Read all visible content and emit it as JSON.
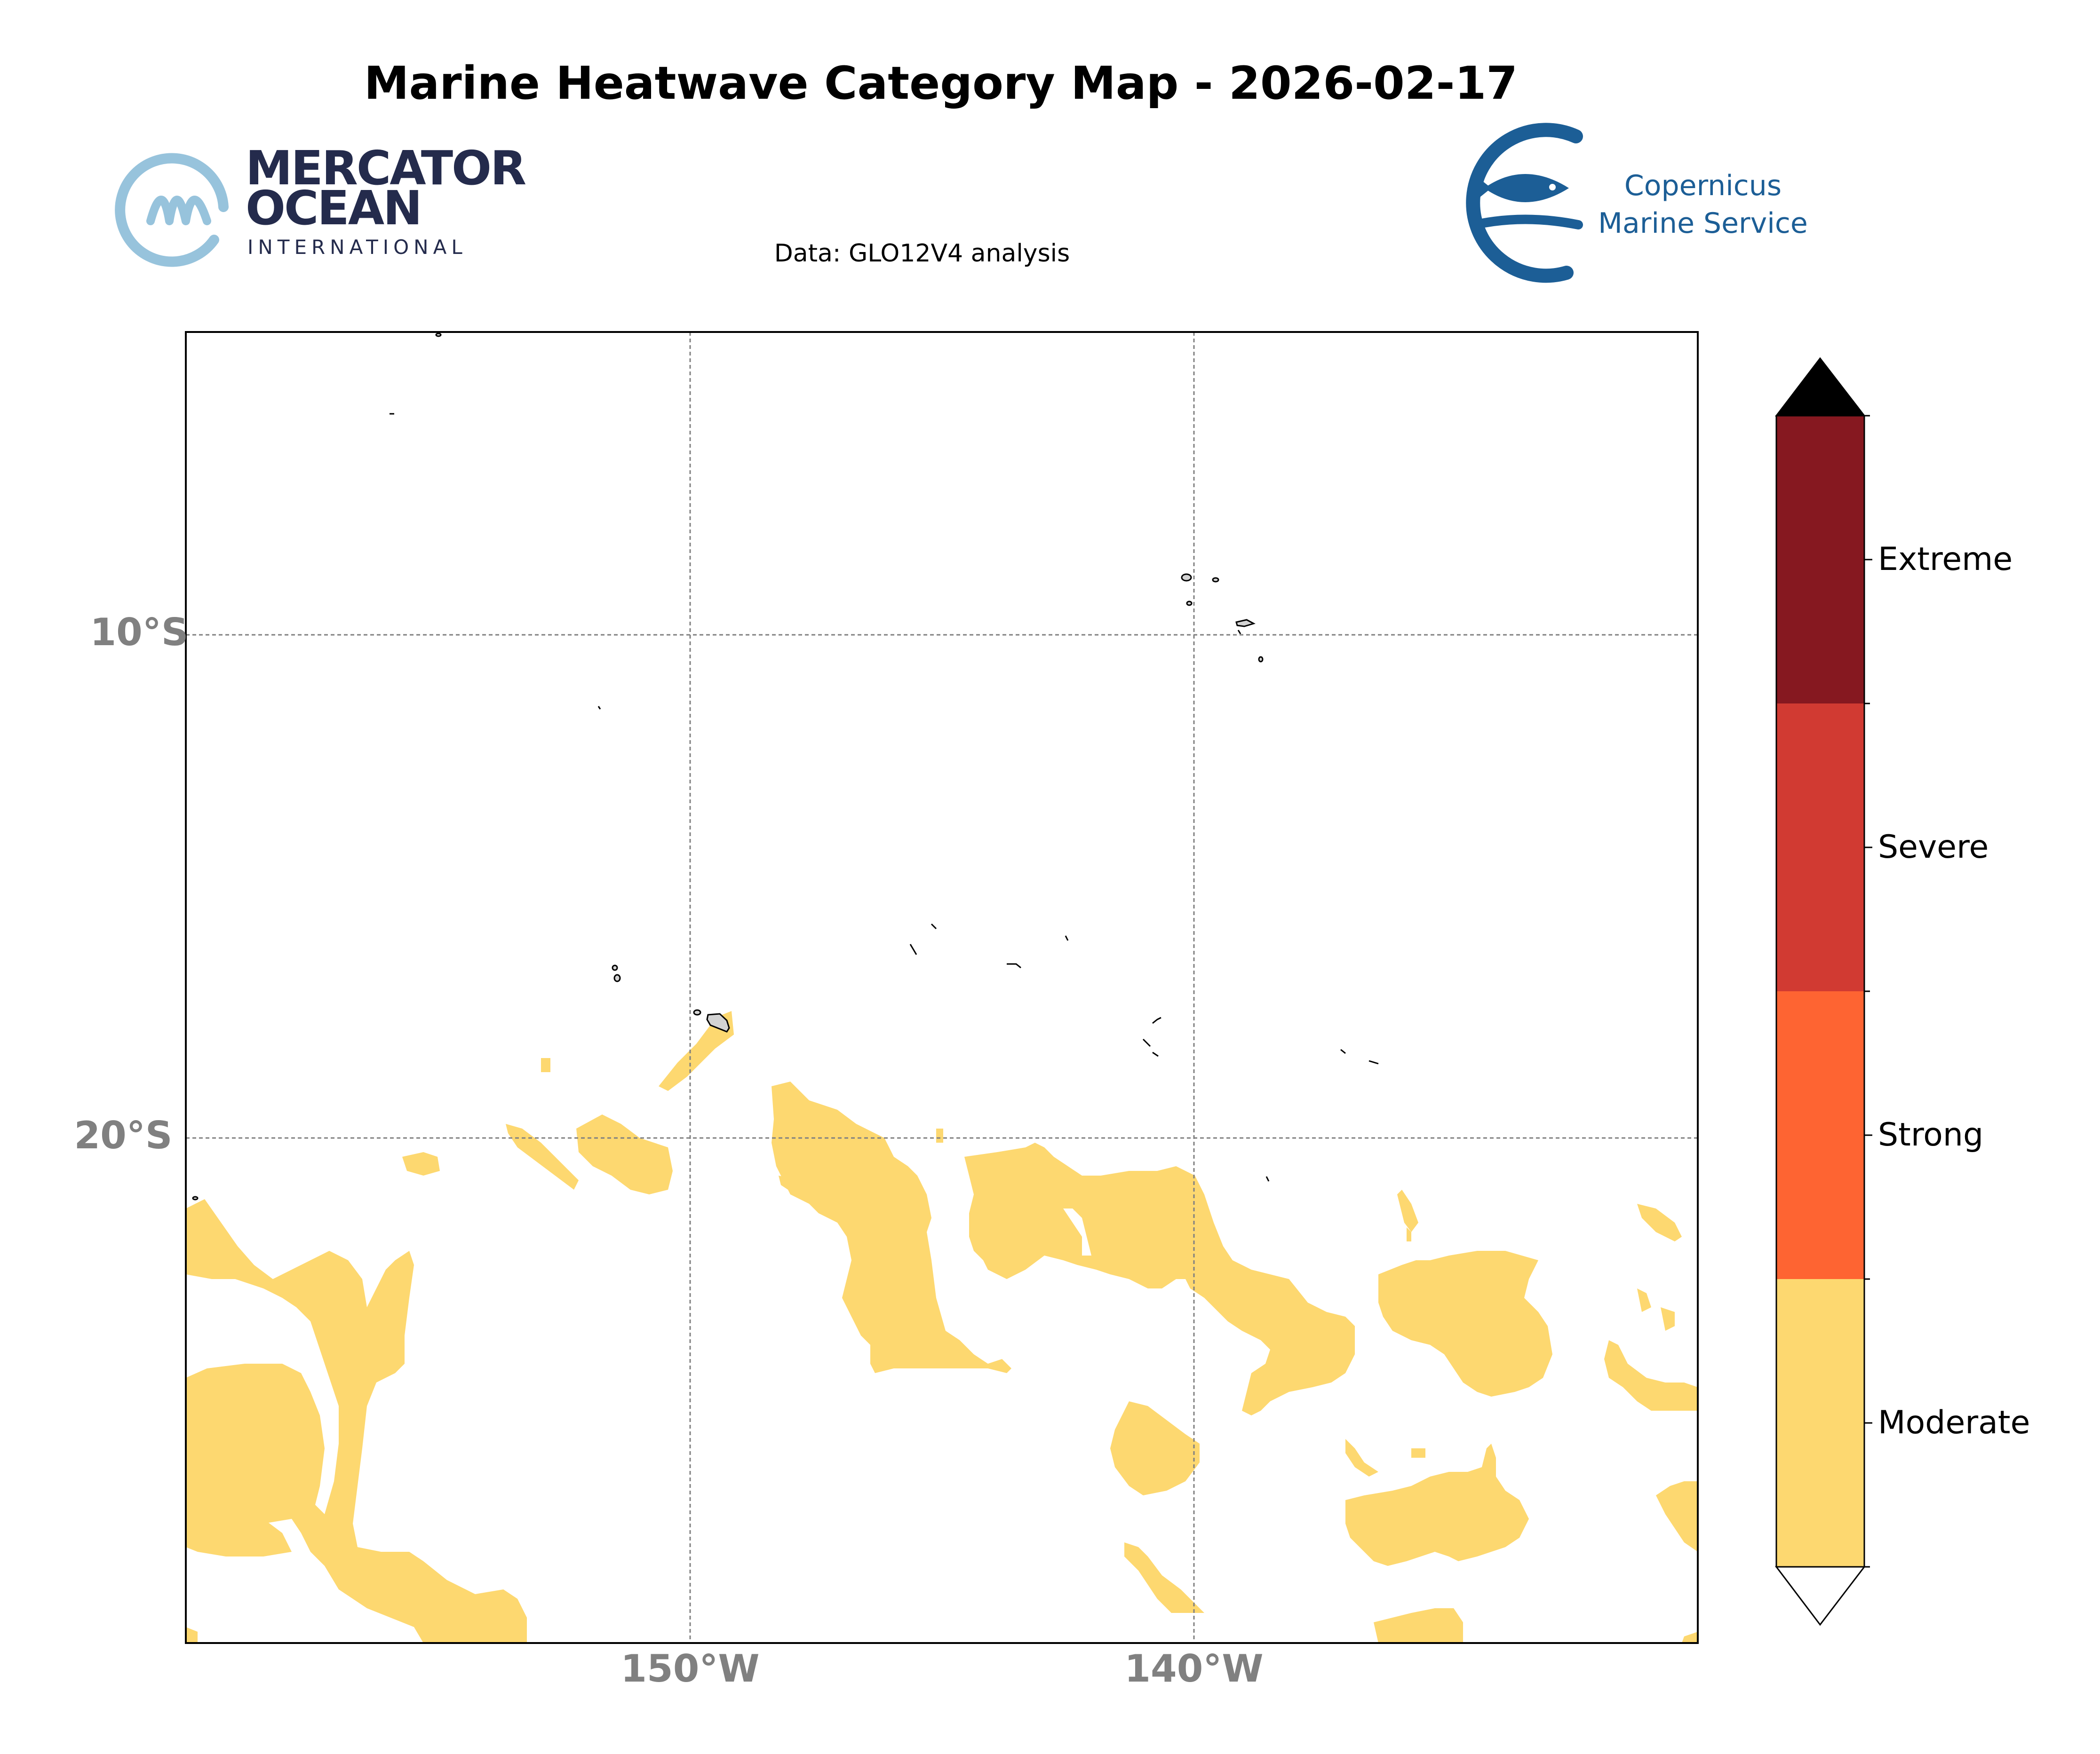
{
  "title": "Marine Heatwave Category Map - 2026-02-17",
  "subtitle": "Data: GLO12V4 analysis",
  "logos": {
    "left": {
      "line1": "MERCATOR",
      "line2": "OCEAN",
      "line3": "INTERNATIONAL",
      "color": "#242b4c",
      "accent": "#97c3dc"
    },
    "right": {
      "line1": "Copernicus",
      "line2": "Marine Service",
      "color": "#1c5e96"
    }
  },
  "map": {
    "lat_labels": [
      "10°S",
      "20°S"
    ],
    "lon_labels": [
      "150°W",
      "140°W"
    ],
    "label_color": "#808080",
    "gridlines": true,
    "fill_color": "#fdd870",
    "land_fill": "#d3d3d3"
  },
  "colorbar": {
    "categories": [
      "Moderate",
      "Strong",
      "Severe",
      "Extreme"
    ],
    "colors": [
      "#fdd870",
      "#fe6432",
      "#d13a32",
      "#861820"
    ],
    "over_color": "#000000",
    "under_color": "#ffffff"
  },
  "chart_data": {
    "type": "heatmap",
    "title": "Marine Heatwave Category Map - 2026-02-17",
    "subtitle": "Data: GLO12V4 analysis",
    "lon_range": [
      -160,
      -127
    ],
    "lat_range": [
      -26,
      0
    ],
    "lon_ticks": [
      "150°W",
      "140°W"
    ],
    "lat_ticks": [
      "10°S",
      "20°S"
    ],
    "legend": [
      "Moderate",
      "Strong",
      "Severe",
      "Extreme"
    ],
    "legend_placement": "right",
    "dominant_category": "Moderate",
    "grid": true
  }
}
